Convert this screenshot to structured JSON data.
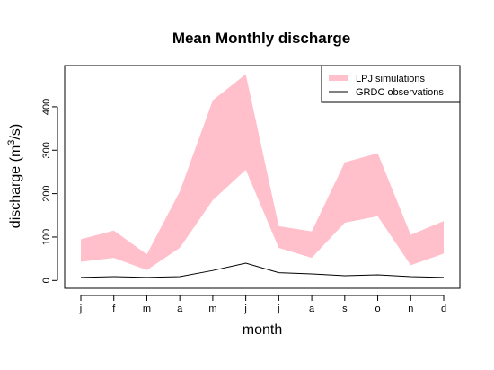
{
  "chart_data": {
    "type": "area",
    "title": "Mean Monthly discharge",
    "xlabel": "month",
    "ylabel": "discharge (m³/s)",
    "ylabel_parts": {
      "before": "discharge (m",
      "sup": "3",
      "after": "/s)"
    },
    "categories": [
      "j",
      "f",
      "m",
      "a",
      "m",
      "j",
      "j",
      "a",
      "s",
      "o",
      "n",
      "d"
    ],
    "ylim": [
      -18,
      495
    ],
    "yticks": [
      0,
      100,
      200,
      300,
      400
    ],
    "grid": false,
    "legend_position": "top-right",
    "series": [
      {
        "name": "LPJ simulations",
        "kind": "band",
        "color": "#ffc0cb",
        "lower": [
          43,
          52,
          24,
          75,
          185,
          255,
          75,
          52,
          133,
          148,
          35,
          62
        ],
        "upper": [
          95,
          115,
          60,
          205,
          415,
          475,
          125,
          113,
          272,
          293,
          105,
          137
        ]
      },
      {
        "name": "GRDC observations",
        "kind": "line",
        "color": "#000000",
        "values": [
          7,
          9,
          7,
          9,
          23,
          40,
          18,
          15,
          11,
          13,
          9,
          7
        ]
      }
    ]
  }
}
